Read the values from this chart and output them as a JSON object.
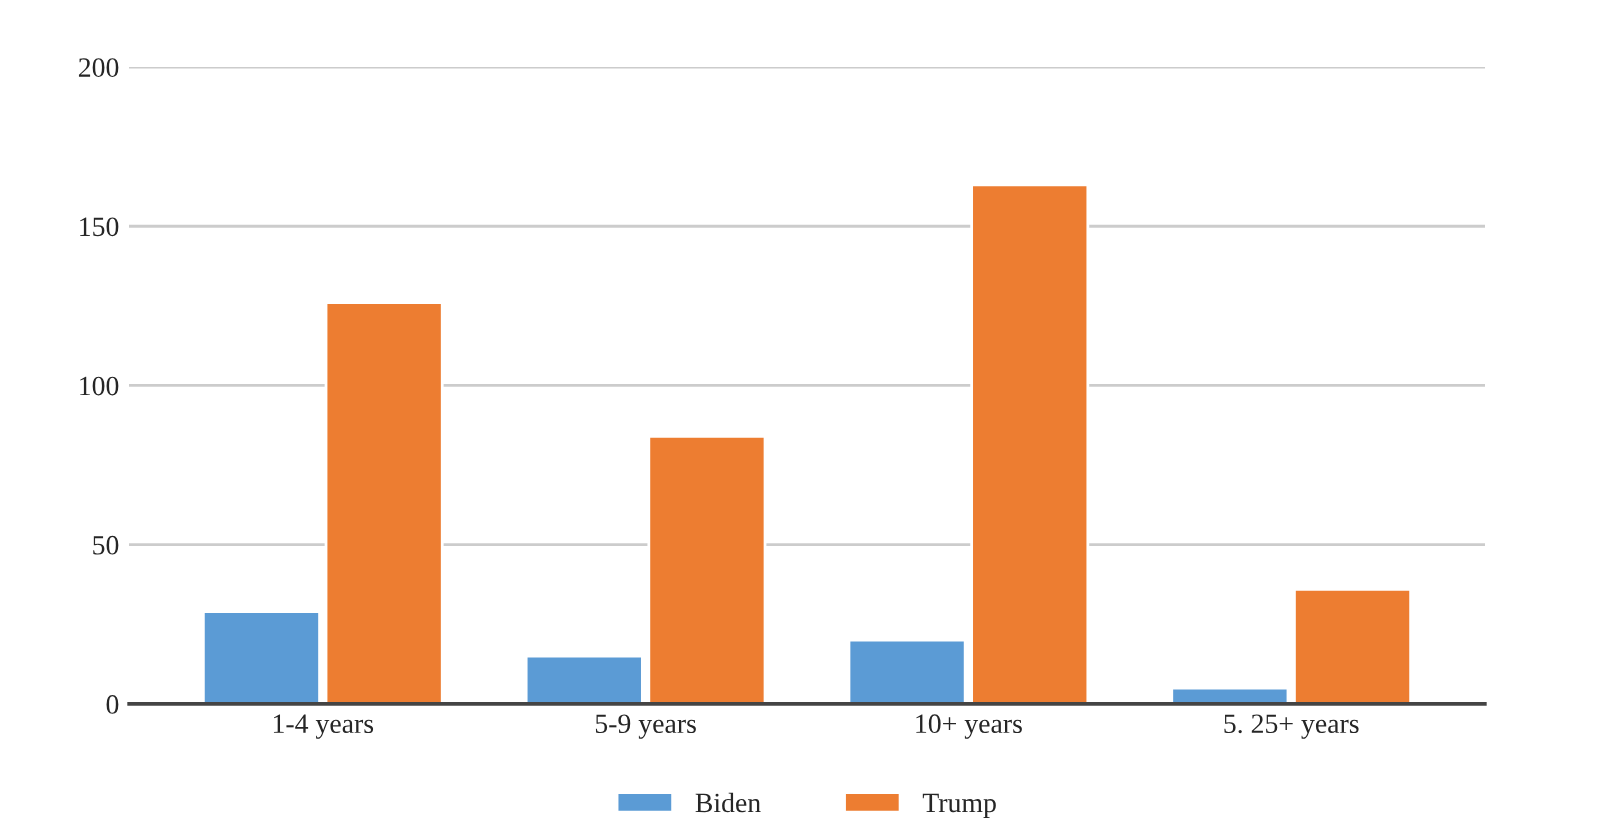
{
  "chart_data": {
    "type": "bar",
    "categories": [
      "1-4 years",
      "5-9 years",
      "10+ years",
      "5. 25+ years"
    ],
    "series": [
      {
        "name": "Biden",
        "color": "#5b9bd5",
        "values": [
          29,
          15,
          20,
          5
        ]
      },
      {
        "name": "Trump",
        "color": "#ed7d31",
        "values": [
          126,
          84,
          163,
          36
        ]
      }
    ],
    "ylim": [
      0,
      200
    ],
    "yticks": [
      0,
      50,
      100,
      150,
      200
    ],
    "grid": "y",
    "legend": "bottom"
  }
}
